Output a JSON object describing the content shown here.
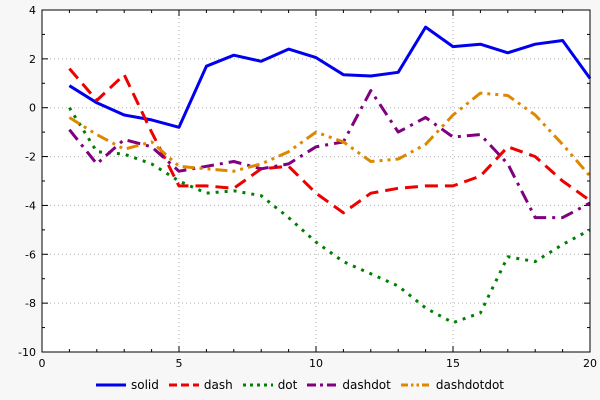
{
  "chart_data": {
    "type": "line",
    "title": "",
    "xlabel": "",
    "ylabel": "",
    "xlim": [
      0,
      20
    ],
    "ylim": [
      -10,
      4
    ],
    "x_ticks": [
      0,
      5,
      10,
      15,
      20
    ],
    "y_ticks": [
      -10,
      -8,
      -6,
      -4,
      -2,
      0,
      2,
      4
    ],
    "x_minor_step": 1,
    "y_minor_step": 1,
    "grid": true,
    "legend_position": "bottom",
    "x": [
      1,
      2,
      3,
      4,
      5,
      6,
      7,
      8,
      9,
      10,
      11,
      12,
      13,
      14,
      15,
      16,
      17,
      18,
      19,
      20
    ],
    "series": [
      {
        "name": "solid",
        "color": "#0000ee",
        "dash": "solid",
        "values": [
          0.9,
          0.2,
          -0.3,
          -0.5,
          -0.8,
          1.7,
          2.15,
          1.9,
          2.4,
          2.05,
          1.35,
          1.3,
          1.45,
          3.3,
          2.5,
          2.6,
          2.25,
          2.6,
          2.75,
          1.2
        ]
      },
      {
        "name": "dash",
        "color": "#ee0000",
        "dash": "dash",
        "values": [
          1.6,
          0.3,
          1.35,
          -1.0,
          -3.2,
          -3.2,
          -3.3,
          -2.5,
          -2.4,
          -3.5,
          -4.3,
          -3.5,
          -3.3,
          -3.2,
          -3.2,
          -2.8,
          -1.6,
          -2.0,
          -3.0,
          -3.8
        ]
      },
      {
        "name": "dot",
        "color": "#008000",
        "dash": "dot",
        "values": [
          0,
          -1.8,
          -1.9,
          -2.3,
          -3.0,
          -3.5,
          -3.4,
          -3.6,
          -4.5,
          -5.5,
          -6.3,
          -6.8,
          -7.3,
          -8.2,
          -8.8,
          -8.4,
          -6.1,
          -6.3,
          -5.6,
          -5.0
        ]
      },
      {
        "name": "dashdot",
        "color": "#800080",
        "dash": "dashdot",
        "values": [
          -0.9,
          -2.3,
          -1.3,
          -1.6,
          -2.6,
          -2.4,
          -2.2,
          -2.5,
          -2.3,
          -1.6,
          -1.4,
          0.7,
          -1.0,
          -0.4,
          -1.2,
          -1.1,
          -2.3,
          -4.5,
          -4.5,
          -3.9
        ]
      },
      {
        "name": "dashdotdot",
        "color": "#dd8800",
        "dash": "dashdotdot",
        "values": [
          -0.4,
          -1.1,
          -1.7,
          -1.4,
          -2.4,
          -2.5,
          -2.6,
          -2.3,
          -1.8,
          -1.0,
          -1.4,
          -2.2,
          -2.1,
          -1.5,
          -0.3,
          0.6,
          0.5,
          -0.3,
          -1.5,
          -2.8
        ]
      }
    ]
  },
  "style": {
    "outer_bg": "#f7f7f7",
    "plot_bg": "#ffffff",
    "axis_color": "#000000",
    "grid_color": "#b0b0b0",
    "text_color": "#000000",
    "line_width": 3,
    "tick_font_size": 11,
    "legend_font_size": 12
  }
}
